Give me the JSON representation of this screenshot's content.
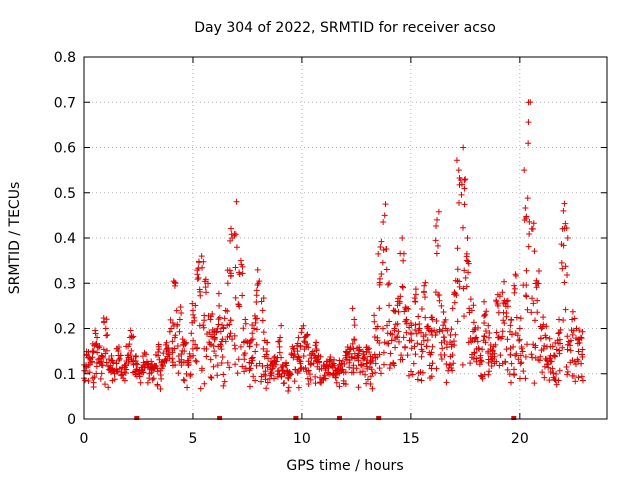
{
  "chart_data": {
    "type": "scatter",
    "title": "Day 304 of 2022, SRMTID for receiver acso",
    "xlabel": "GPS time / hours",
    "ylabel": "SRMTID / TECUs",
    "xlim": [
      0,
      24
    ],
    "ylim": [
      0,
      0.8
    ],
    "xticks": [
      0,
      5,
      10,
      15,
      20
    ],
    "xtick_labels": [
      "0",
      "5",
      "10",
      "15",
      "20"
    ],
    "yticks": [
      0,
      0.1,
      0.2,
      0.3,
      0.4,
      0.5,
      0.6,
      0.7,
      0.8
    ],
    "ytick_labels": [
      "0",
      "0.1",
      "0.2",
      "0.3",
      "0.4",
      "0.5",
      "0.6",
      "0.7",
      "0.8"
    ],
    "grid": true,
    "marker": "+",
    "color": "#e00000",
    "baseline_marks_x": [
      2.4,
      6.2,
      9.7,
      11.7,
      13.5,
      19.7
    ],
    "series": [
      {
        "name": "SRMTID",
        "x": [
          0.0,
          0.2,
          0.4,
          0.6,
          0.8,
          1.0,
          1.2,
          1.4,
          1.6,
          1.8,
          2.0,
          2.2,
          2.4,
          2.6,
          2.8,
          3.0,
          3.2,
          3.4,
          3.6,
          3.8,
          4.0,
          4.2,
          4.4,
          4.6,
          4.8,
          5.0,
          5.2,
          5.4,
          5.6,
          5.8,
          6.0,
          6.2,
          6.4,
          6.6,
          6.8,
          7.0,
          7.2,
          7.4,
          7.6,
          7.8,
          8.0,
          8.2,
          8.4,
          8.6,
          8.8,
          9.0,
          9.2,
          9.4,
          9.6,
          9.8,
          10.0,
          10.2,
          10.4,
          10.6,
          10.8,
          11.0,
          11.2,
          11.4,
          11.6,
          11.8,
          12.0,
          12.2,
          12.4,
          12.6,
          12.8,
          13.0,
          13.2,
          13.4,
          13.6,
          13.8,
          14.0,
          14.2,
          14.4,
          14.6,
          14.8,
          15.0,
          15.2,
          15.4,
          15.6,
          15.8,
          16.0,
          16.2,
          16.4,
          16.6,
          16.8,
          17.0,
          17.2,
          17.4,
          17.6,
          17.8,
          18.0,
          18.2,
          18.4,
          18.6,
          18.8,
          19.0,
          19.2,
          19.4,
          19.6,
          19.8,
          20.0,
          20.2,
          20.4,
          20.6,
          20.8,
          21.0,
          21.2,
          21.4,
          21.6,
          21.8,
          22.0,
          22.2,
          22.4,
          22.6,
          22.8
        ],
        "y": [
          0.09,
          0.12,
          0.15,
          0.18,
          0.14,
          0.2,
          0.11,
          0.1,
          0.13,
          0.09,
          0.14,
          0.18,
          0.11,
          0.08,
          0.12,
          0.1,
          0.09,
          0.14,
          0.12,
          0.15,
          0.2,
          0.3,
          0.22,
          0.15,
          0.12,
          0.24,
          0.32,
          0.36,
          0.28,
          0.22,
          0.18,
          0.25,
          0.2,
          0.3,
          0.4,
          0.48,
          0.35,
          0.22,
          0.16,
          0.2,
          0.3,
          0.24,
          0.15,
          0.1,
          0.12,
          0.18,
          0.1,
          0.07,
          0.14,
          0.15,
          0.2,
          0.16,
          0.12,
          0.14,
          0.11,
          0.09,
          0.1,
          0.12,
          0.08,
          0.11,
          0.14,
          0.13,
          0.22,
          0.14,
          0.12,
          0.13,
          0.11,
          0.2,
          0.38,
          0.45,
          0.3,
          0.24,
          0.26,
          0.4,
          0.22,
          0.19,
          0.26,
          0.2,
          0.28,
          0.2,
          0.22,
          0.44,
          0.25,
          0.2,
          0.17,
          0.28,
          0.55,
          0.6,
          0.4,
          0.24,
          0.18,
          0.14,
          0.23,
          0.19,
          0.16,
          0.25,
          0.28,
          0.26,
          0.22,
          0.32,
          0.2,
          0.55,
          0.7,
          0.42,
          0.3,
          0.2,
          0.18,
          0.16,
          0.14,
          0.22,
          0.46,
          0.4,
          0.22,
          0.2,
          0.18
        ]
      }
    ],
    "sampling_note": "representative points read off the dense scatter; spread reproduced by the drawing script"
  }
}
